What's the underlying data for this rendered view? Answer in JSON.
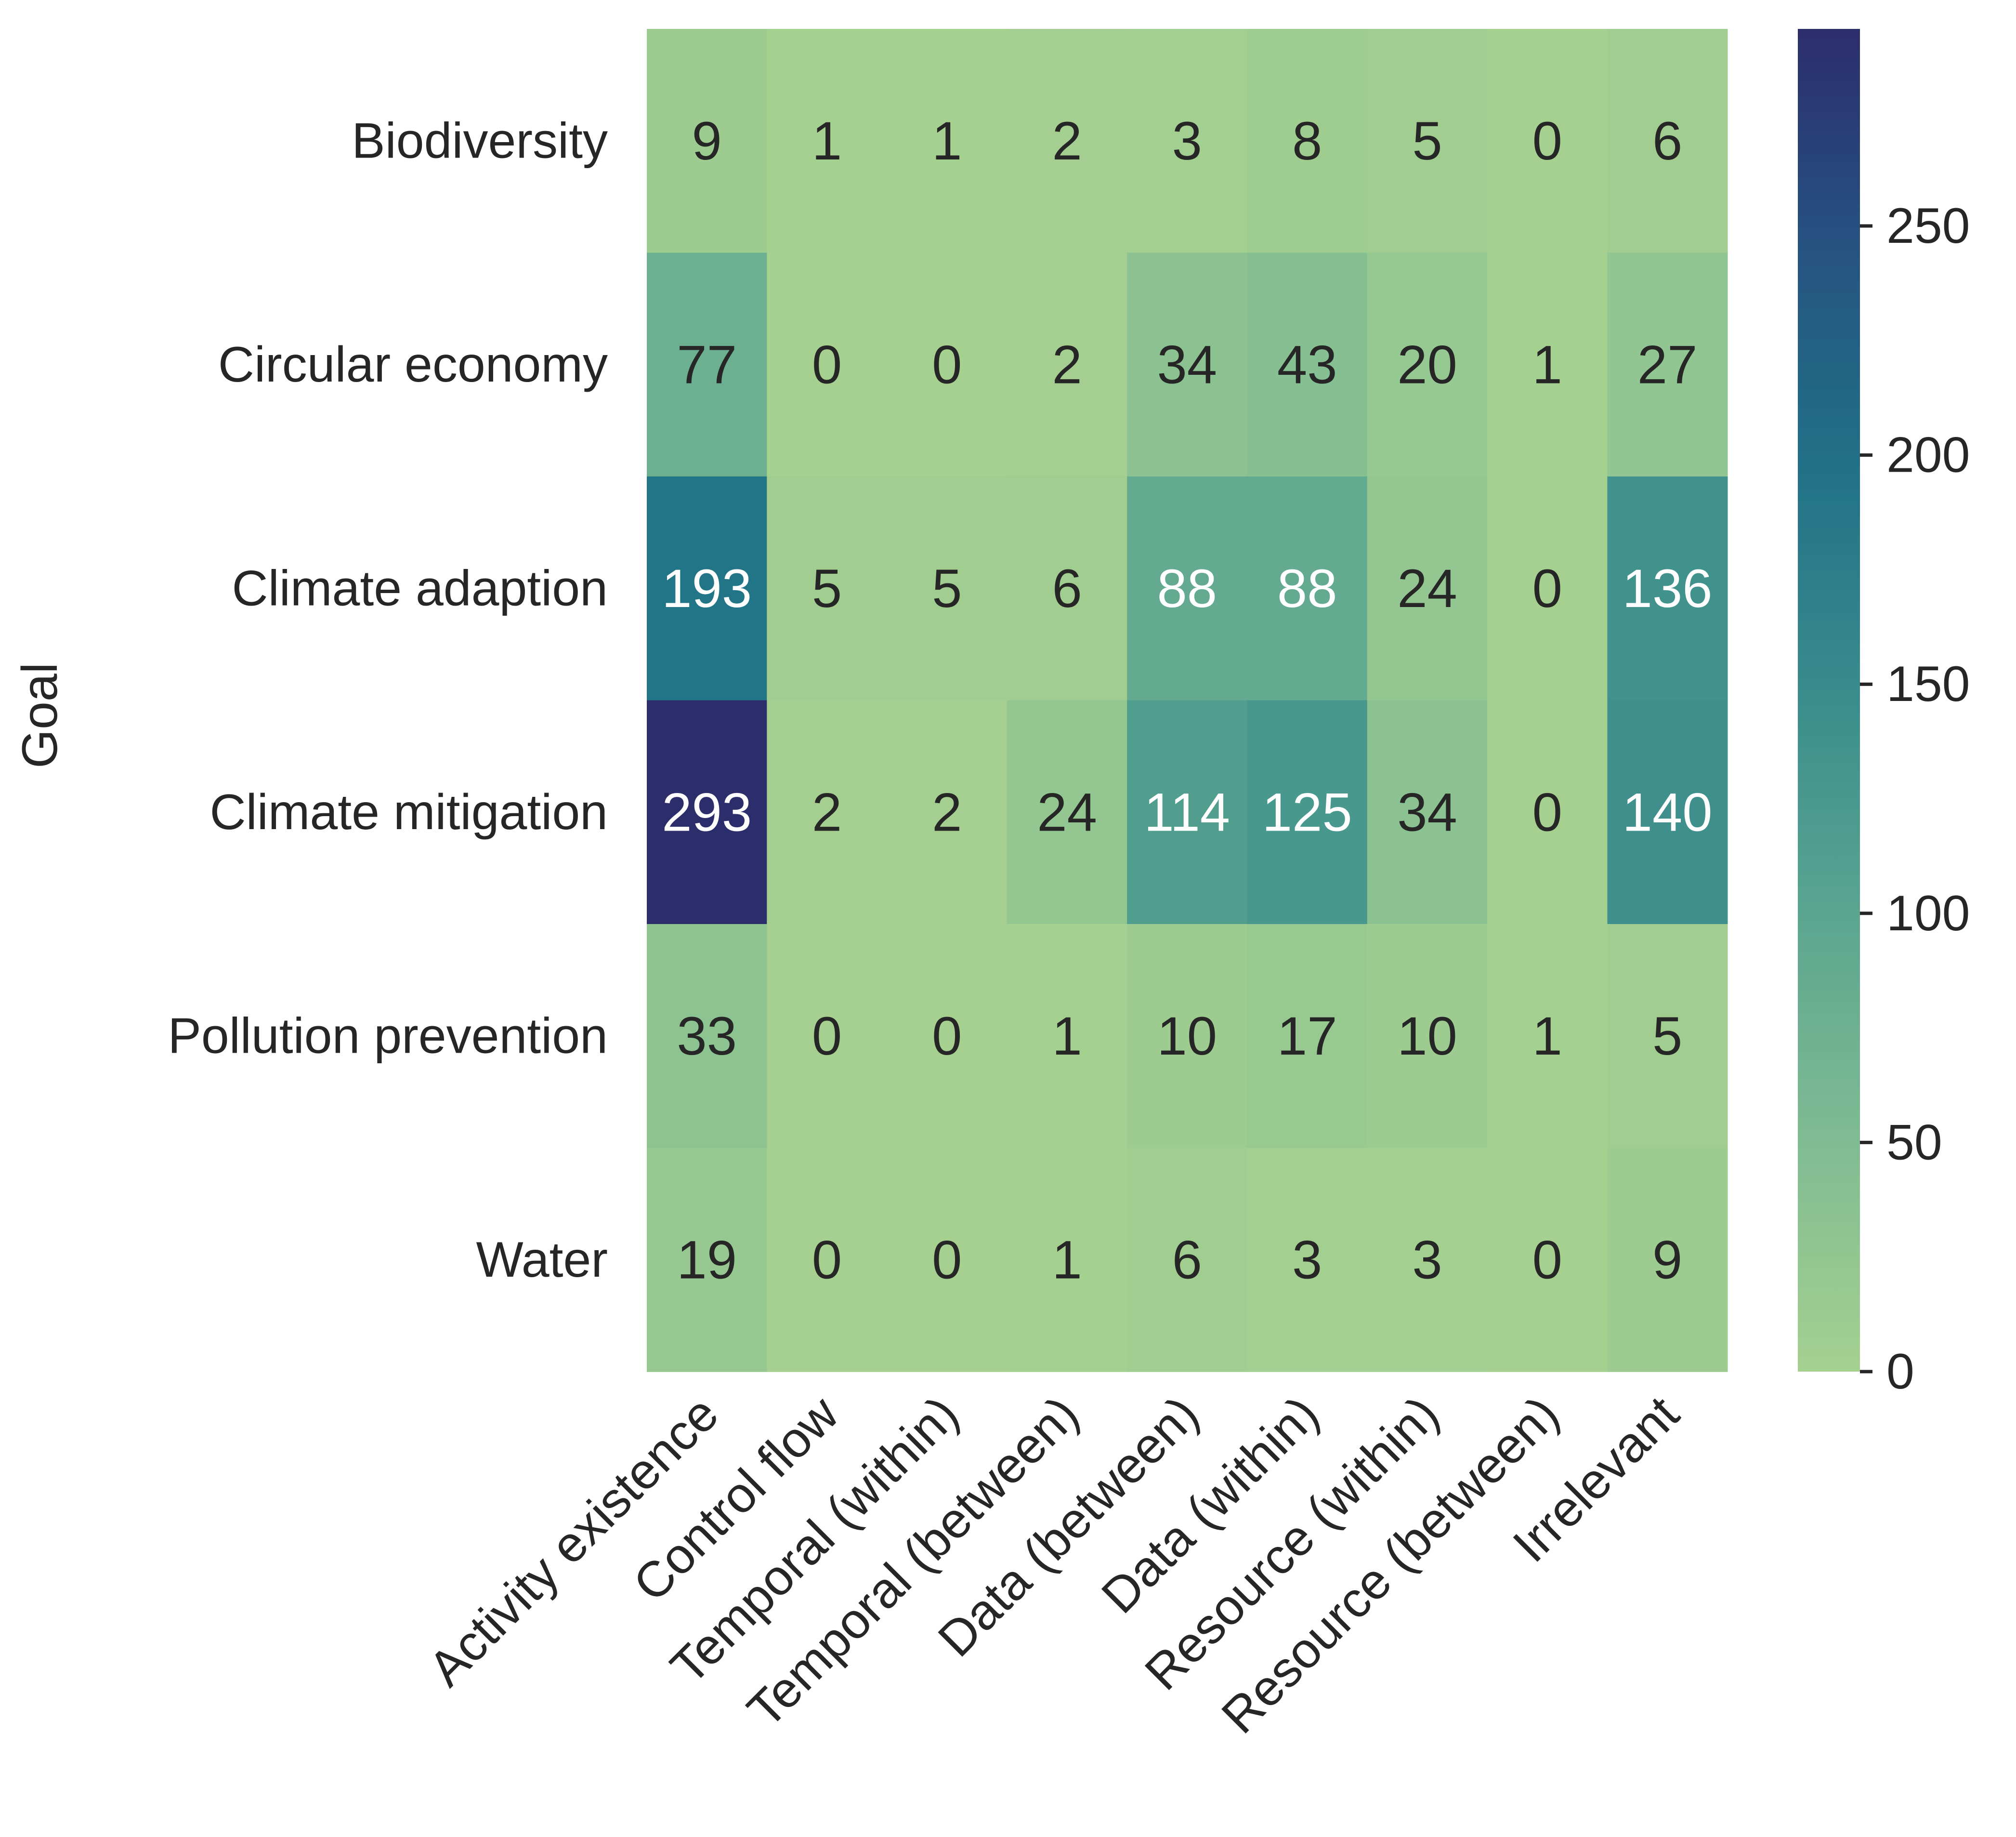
{
  "chart_data": {
    "type": "heatmap",
    "ylabel": "Goal",
    "xlabel": "",
    "rows": [
      "Biodiversity",
      "Circular economy",
      "Climate adaption",
      "Climate mitigation",
      "Pollution prevention",
      "Water"
    ],
    "columns": [
      "Activity existence",
      "Control flow",
      "Temporal (within)",
      "Temporal (between)",
      "Data (between)",
      "Data (within)",
      "Resource (within)",
      "Resource (between)",
      "Irrelevant"
    ],
    "values": [
      [
        9,
        1,
        1,
        2,
        3,
        8,
        5,
        0,
        6
      ],
      [
        77,
        0,
        0,
        2,
        34,
        43,
        20,
        1,
        27
      ],
      [
        193,
        5,
        5,
        6,
        88,
        88,
        24,
        0,
        136
      ],
      [
        293,
        2,
        2,
        24,
        114,
        125,
        34,
        0,
        140
      ],
      [
        33,
        0,
        0,
        1,
        10,
        17,
        10,
        1,
        5
      ],
      [
        19,
        0,
        0,
        1,
        6,
        3,
        3,
        0,
        9
      ]
    ],
    "colorbar": {
      "min": 0,
      "max": 293,
      "ticks": [
        0,
        50,
        100,
        150,
        200,
        250
      ],
      "colormap": "crest",
      "low_color": "#a5d090",
      "high_color": "#2c2e6b"
    },
    "annotation_dark_color": "#262626",
    "annotation_light_color": "#ffffff",
    "grid": false
  }
}
